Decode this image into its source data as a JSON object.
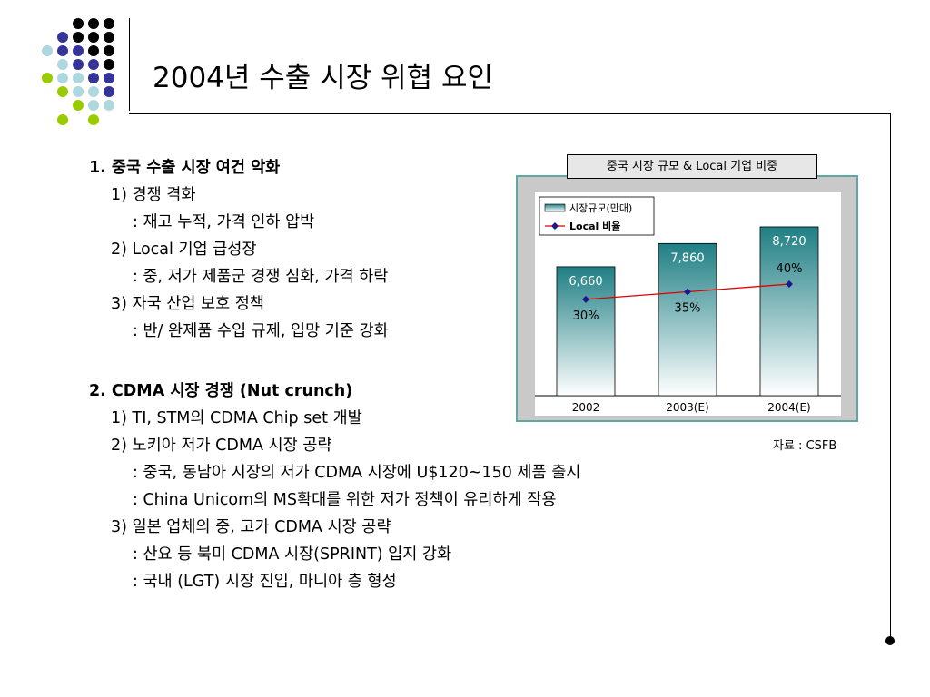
{
  "slide": {
    "title": "2004년 수출 시장 위협 요인",
    "sections": [
      {
        "heading": "1.   중국 수출 시장 여건 악화",
        "lines": [
          "1) 경쟁 격화",
          ": 재고 누적, 가격 인하 압박",
          "2) Local 기업 급성장",
          ": 중, 저가 제품군 경쟁 심화, 가격 하락",
          "3) 자국 산업 보호 정책",
          ": 반/ 완제품 수입 규제, 입망 기준 강화"
        ]
      },
      {
        "heading": "2.  CDMA 시장 경쟁 (Nut crunch)",
        "lines": [
          "1) TI, STM의 CDMA Chip set 개발",
          "2) 노키아 저가 CDMA 시장 공략",
          ": 중국, 동남아 시장의 저가 CDMA 시장에 U$120~150 제품 출시",
          ": China Unicom의 MS확대를 위한 저가 정책이 유리하게 작용",
          "3) 일본 업체의 중, 고가 CDMA 시장 공략",
          ": 산요 등 북미 CDMA 시장(SPRINT) 입지 강화",
          ": 국내 (LGT) 시장 진입, 마니아 층 형성"
        ]
      }
    ],
    "source": "자료 : CSFB"
  },
  "chart_data": {
    "type": "bar",
    "title": "중국 시장 규모 & Local 기업 비중",
    "categories": [
      "2002",
      "2003(E)",
      "2004(E)"
    ],
    "series": [
      {
        "name": "시장규모(만대)",
        "kind": "bar",
        "values": [
          6660,
          7860,
          8720
        ],
        "labels": [
          "6,660",
          "7,860",
          "8,720"
        ]
      },
      {
        "name": "Local 비율",
        "kind": "line",
        "values": [
          30,
          35,
          40
        ],
        "labels": [
          "30%",
          "35%",
          "40%"
        ]
      }
    ],
    "ylim": [
      0,
      10500
    ],
    "y2lim": [
      -33,
      100
    ],
    "grid": false,
    "legend_position": "top-left",
    "colors": {
      "bar_top": "#1f7f84",
      "bar_bottom": "#ffffff",
      "bar_label": "#ffffff",
      "line": "#e00000",
      "marker": "#1a1a8c",
      "frame": "#5ea7a2"
    }
  }
}
